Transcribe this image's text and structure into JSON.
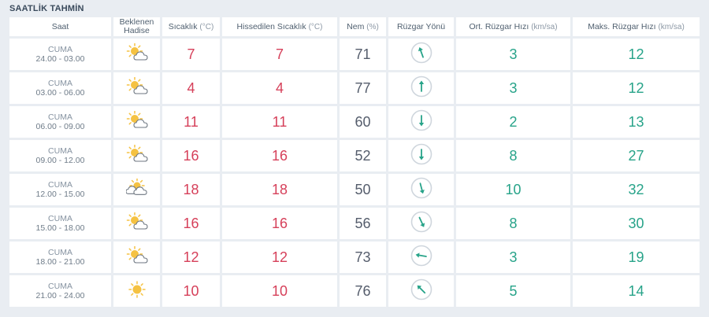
{
  "section_title": "SAATLİK TAHMİN",
  "headers": {
    "time": "Saat",
    "condition_line1": "Beklenen",
    "condition_line2": "Hadise",
    "temp": "Sıcaklık",
    "temp_unit": "(°C)",
    "feels": "Hissedilen Sıcaklık",
    "feels_unit": "(°C)",
    "humidity": "Nem",
    "humidity_unit": "(%)",
    "wind_dir": "Rüzgar Yönü",
    "avg_wind": "Ort. Rüzgar Hızı",
    "avg_wind_unit": "(km/sa)",
    "max_wind": "Maks. Rüzgar Hızı",
    "max_wind_unit": "(km/sa)"
  },
  "rows": [
    {
      "day": "CUMA",
      "range": "24.00 - 03.00",
      "icon": "partly-cloudy-icon",
      "temp": "7",
      "feels": "7",
      "humidity": "71",
      "wind_dir_deg": 340,
      "avg_wind": "3",
      "max_wind": "12"
    },
    {
      "day": "CUMA",
      "range": "03.00 - 06.00",
      "icon": "partly-cloudy-icon",
      "temp": "4",
      "feels": "4",
      "humidity": "77",
      "wind_dir_deg": 0,
      "avg_wind": "3",
      "max_wind": "12"
    },
    {
      "day": "CUMA",
      "range": "06.00 - 09.00",
      "icon": "partly-cloudy-icon",
      "temp": "11",
      "feels": "11",
      "humidity": "60",
      "wind_dir_deg": 180,
      "avg_wind": "2",
      "max_wind": "13"
    },
    {
      "day": "CUMA",
      "range": "09.00 - 12.00",
      "icon": "partly-cloudy-icon",
      "temp": "16",
      "feels": "16",
      "humidity": "52",
      "wind_dir_deg": 180,
      "avg_wind": "8",
      "max_wind": "27"
    },
    {
      "day": "CUMA",
      "range": "12.00 - 15.00",
      "icon": "mostly-cloudy-icon",
      "temp": "18",
      "feels": "18",
      "humidity": "50",
      "wind_dir_deg": 165,
      "avg_wind": "10",
      "max_wind": "32"
    },
    {
      "day": "CUMA",
      "range": "15.00 - 18.00",
      "icon": "partly-cloudy-icon",
      "temp": "16",
      "feels": "16",
      "humidity": "56",
      "wind_dir_deg": 155,
      "avg_wind": "8",
      "max_wind": "30"
    },
    {
      "day": "CUMA",
      "range": "18.00 - 21.00",
      "icon": "partly-cloudy-icon",
      "temp": "12",
      "feels": "12",
      "humidity": "73",
      "wind_dir_deg": 280,
      "avg_wind": "3",
      "max_wind": "19"
    },
    {
      "day": "CUMA",
      "range": "21.00 - 24.00",
      "icon": "sunny-icon",
      "temp": "10",
      "feels": "10",
      "humidity": "76",
      "wind_dir_deg": 315,
      "avg_wind": "5",
      "max_wind": "14"
    }
  ],
  "colors": {
    "temp": "#d6405a",
    "humidity": "#555d6c",
    "wind": "#27a389",
    "sun": "#f5c242",
    "cloud_stroke": "#6d7680",
    "dial_ring": "#cfd6dd"
  }
}
